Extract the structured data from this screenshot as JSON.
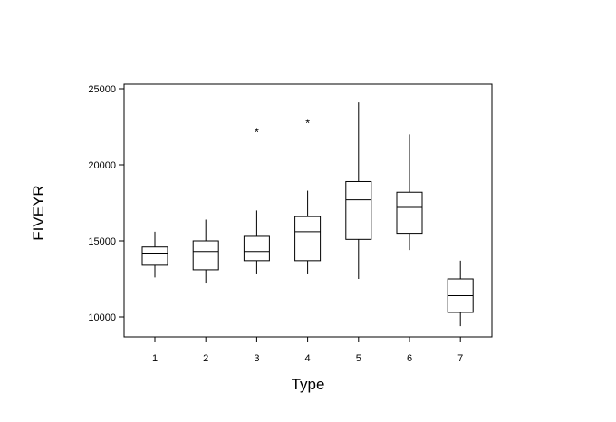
{
  "chart_data": {
    "type": "box",
    "xlabel": "Type",
    "ylabel": "FIVEYR",
    "categories": [
      "1",
      "2",
      "3",
      "4",
      "5",
      "6",
      "7"
    ],
    "yticks": [
      {
        "value": 10000,
        "label": "10000"
      },
      {
        "value": 15000,
        "label": "15000"
      },
      {
        "value": 20000,
        "label": "20000"
      },
      {
        "value": 25000,
        "label": "25000"
      }
    ],
    "ylim": [
      8750,
      25300
    ],
    "grid": false,
    "outlier_marker": "*",
    "boxes": [
      {
        "category": "1",
        "min": 12600,
        "q1": 13400,
        "median": 14200,
        "q3": 14600,
        "max": 15600,
        "outliers": []
      },
      {
        "category": "2",
        "min": 12200,
        "q1": 13100,
        "median": 14300,
        "q3": 15000,
        "max": 16400,
        "outliers": []
      },
      {
        "category": "3",
        "min": 12800,
        "q1": 13700,
        "median": 14300,
        "q3": 15300,
        "max": 17000,
        "outliers": [
          22300
        ]
      },
      {
        "category": "4",
        "min": 12800,
        "q1": 13700,
        "median": 15600,
        "q3": 16600,
        "max": 18300,
        "outliers": [
          22900
        ]
      },
      {
        "category": "5",
        "min": 12500,
        "q1": 15100,
        "median": 17700,
        "q3": 18900,
        "max": 24100,
        "outliers": []
      },
      {
        "category": "6",
        "min": 14400,
        "q1": 15500,
        "median": 17200,
        "q3": 18200,
        "max": 22000,
        "outliers": []
      },
      {
        "category": "7",
        "min": 9400,
        "q1": 10300,
        "median": 11400,
        "q3": 12500,
        "max": 13700,
        "outliers": []
      }
    ]
  }
}
